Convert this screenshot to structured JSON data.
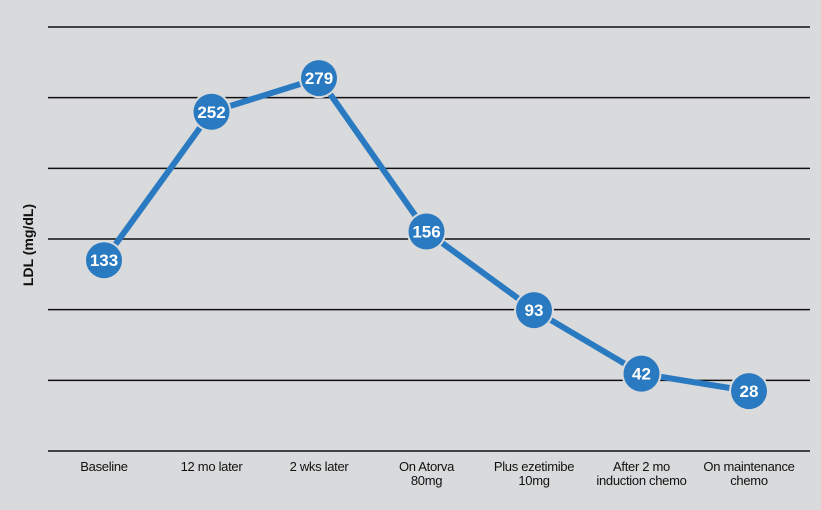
{
  "chart_data": {
    "type": "line",
    "title": "",
    "xlabel": "",
    "ylabel": "LDL (mg/dL)",
    "categories": [
      "Baseline",
      "12 mo later",
      "2 wks later",
      "On Atorva\n80mg",
      "Plus ezetimibe\n10mg",
      "After 2 mo\ninduction chemo",
      "On maintenance\nchemo"
    ],
    "series": [
      {
        "name": "",
        "values": [
          133,
          252,
          279,
          156,
          93,
          42,
          28
        ]
      }
    ],
    "data_labels": [
      "133",
      "252",
      "279",
      "156",
      "93",
      "42",
      "28"
    ],
    "ylim": [
      -20,
      320
    ],
    "grid": true,
    "colors": {
      "line": "#2a7ac2",
      "marker": "#2a7ac2",
      "label": "#ffffff",
      "grid": "#111111",
      "background": "#d9dadb"
    }
  }
}
